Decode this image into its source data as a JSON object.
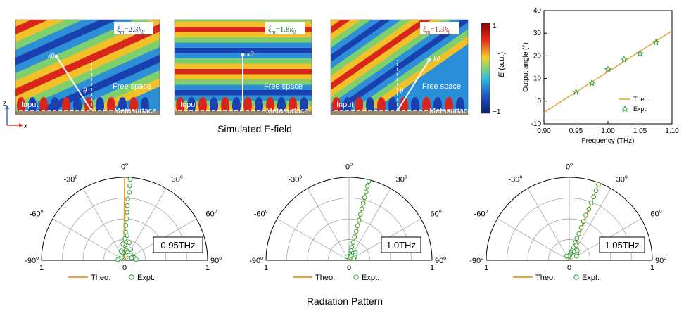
{
  "field_panels": [
    {
      "label": "ξm=2.3k0",
      "xi_text": "ξ",
      "xi_sub": "m",
      "xi_value": "=2.3",
      "k_text": "k",
      "k_sub": "0",
      "label_color": "#1f3c8c",
      "wave": "k0",
      "theta": "θ",
      "free_space": "Free space",
      "input": "Input",
      "metasurface": "Metasurface"
    },
    {
      "label": "ξm=1.8k0",
      "xi_text": "ξ",
      "xi_sub": "m",
      "xi_value": "=1.8",
      "k_text": "k",
      "k_sub": "0",
      "label_color": "#1f7a3a",
      "wave": "k0",
      "theta": "",
      "free_space": "Free space",
      "input": "Input",
      "metasurface": "Metasurface"
    },
    {
      "label": "ξm=1.3k0",
      "xi_text": "ξ",
      "xi_sub": "m",
      "xi_value": "=1.3",
      "k_text": "k",
      "k_sub": "0",
      "label_color": "#c0392b",
      "wave": "k0",
      "theta": "θ",
      "free_space": "Free space",
      "input": "Input",
      "metasurface": "Metasurface"
    }
  ],
  "axes_indicator": {
    "z": "z",
    "x": "x"
  },
  "colorbar": {
    "max": "1",
    "min": "−1",
    "label": "E (a.u.)",
    "label_italic": "E",
    "label_unit": " (a.u.)"
  },
  "captions": {
    "field": "Simulated E-field",
    "radiation": "Radiation Pattern"
  },
  "chart_data": [
    {
      "type": "line",
      "xlabel": "Frequency (THz)",
      "ylabel": "Output angle (°)",
      "xlim": [
        0.9,
        1.1
      ],
      "ylim": [
        -10,
        40
      ],
      "xticks": [
        "0.90",
        "0.95",
        "1.00",
        "1.05",
        "1.10"
      ],
      "yticks": [
        "-10",
        "0",
        "10",
        "20",
        "30",
        "40"
      ],
      "legend_position": "bottom-right",
      "series": [
        {
          "name": "Theo.",
          "style": "line",
          "color": "#e8a23a",
          "x": [
            0.9,
            1.1
          ],
          "y": [
            -5.0,
            31.0
          ]
        },
        {
          "name": "Expt.",
          "style": "star",
          "color": "#2e9e3a",
          "x": [
            0.95,
            0.975,
            1.0,
            1.025,
            1.05,
            1.075
          ],
          "y": [
            4.0,
            8.0,
            14.0,
            18.5,
            21.0,
            26.0
          ]
        }
      ]
    },
    {
      "type": "polar",
      "badge": "0.95THz",
      "angle_labels": [
        "-90",
        "-60",
        "-30",
        "0",
        "30",
        "60",
        "90"
      ],
      "degree_symbol": "o",
      "radial_labels": [
        "1",
        "0",
        "1"
      ],
      "series": [
        {
          "name": "Theo.",
          "style": "line",
          "color": "#e8a23a",
          "angles": [
            -4,
            0,
            4
          ],
          "radii": [
            0.15,
            1.0,
            0.15
          ]
        },
        {
          "name": "Expt.",
          "style": "circle",
          "color": "#2e9e3a",
          "angles": [
            4,
            4,
            4,
            3,
            3,
            3,
            3,
            2,
            2,
            1,
            1,
            0,
            10,
            20,
            40,
            60,
            75,
            85,
            -85,
            -70,
            -50,
            -30,
            -15,
            30,
            50,
            70,
            6,
            -6,
            15,
            -20
          ],
          "radii": [
            0.98,
            0.9,
            0.82,
            0.74,
            0.66,
            0.58,
            0.5,
            0.42,
            0.34,
            0.26,
            0.18,
            0.1,
            0.12,
            0.1,
            0.08,
            0.1,
            0.12,
            0.14,
            0.08,
            0.06,
            0.05,
            0.07,
            0.1,
            0.15,
            0.1,
            0.09,
            0.3,
            0.2,
            0.22,
            0.12
          ]
        }
      ]
    },
    {
      "type": "polar",
      "badge": "1.0THz",
      "angle_labels": [
        "-90",
        "-60",
        "-30",
        "0",
        "30",
        "60",
        "90"
      ],
      "degree_symbol": "o",
      "radial_labels": [
        "1",
        "0",
        "1"
      ],
      "series": [
        {
          "name": "Theo.",
          "style": "line",
          "color": "#e8a23a",
          "angles": [
            10,
            14,
            18
          ],
          "radii": [
            0.15,
            1.0,
            0.15
          ]
        },
        {
          "name": "Expt.",
          "style": "circle",
          "color": "#2e9e3a",
          "angles": [
            14,
            14,
            14,
            14,
            14,
            14,
            14,
            14,
            14,
            14,
            13,
            13,
            12,
            11,
            10,
            5,
            20,
            30,
            40,
            50,
            60,
            -10,
            -30,
            70
          ],
          "radii": [
            0.98,
            0.92,
            0.85,
            0.78,
            0.71,
            0.64,
            0.57,
            0.5,
            0.43,
            0.36,
            0.29,
            0.22,
            0.16,
            0.12,
            0.08,
            0.05,
            0.06,
            0.1,
            0.12,
            0.1,
            0.08,
            0.04,
            0.05,
            0.06
          ]
        }
      ]
    },
    {
      "type": "polar",
      "badge": "1.05THz",
      "angle_labels": [
        "-90",
        "-60",
        "-30",
        "0",
        "30",
        "60",
        "90"
      ],
      "degree_symbol": "o",
      "radial_labels": [
        "1",
        "0",
        "1"
      ],
      "series": [
        {
          "name": "Theo.",
          "style": "line",
          "color": "#e8a23a",
          "angles": [
            17,
            21,
            25
          ],
          "radii": [
            0.15,
            1.0,
            0.15
          ]
        },
        {
          "name": "Expt.",
          "style": "circle",
          "color": "#2e9e3a",
          "angles": [
            21,
            21,
            21,
            21,
            21,
            20,
            20,
            20,
            20,
            19,
            19,
            18,
            16,
            14,
            10,
            5,
            30,
            40,
            50,
            60,
            -10,
            -30,
            25
          ],
          "radii": [
            0.98,
            0.9,
            0.82,
            0.74,
            0.66,
            0.58,
            0.5,
            0.42,
            0.34,
            0.28,
            0.22,
            0.16,
            0.12,
            0.1,
            0.08,
            0.06,
            0.12,
            0.15,
            0.12,
            0.1,
            0.05,
            0.06,
            0.2
          ]
        }
      ]
    }
  ]
}
